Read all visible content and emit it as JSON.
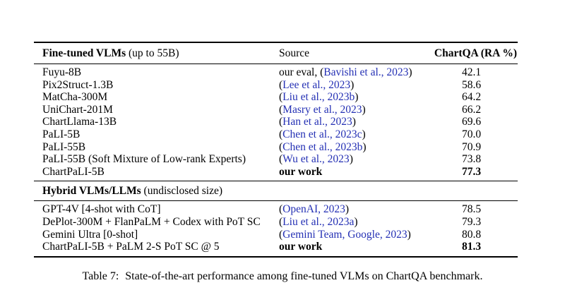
{
  "colors": {
    "background": "#ffffff",
    "text": "#000000",
    "citation_blue": "#2430b4",
    "rule": "#000000"
  },
  "punctuation": {
    "open_paren": "(",
    "close_paren": ")"
  },
  "table": {
    "sections": [
      {
        "name": "fine-tuned-vlms",
        "header": {
          "col1_bold": "Fine-tuned VLMs",
          "col1_normal": " (up to 55B)",
          "col2": "Source",
          "col3": "ChartQA (RA %)"
        },
        "rows": [
          {
            "model": "Fuyu-8B",
            "source_prefix": "our eval, ",
            "cite": "Bavishi et al., 2023",
            "score": "42.1",
            "ours": false
          },
          {
            "model": "Pix2Struct-1.3B",
            "source_prefix": "",
            "cite": "Lee et al., 2023",
            "score": "58.6",
            "ours": false
          },
          {
            "model": "MatCha-300M",
            "source_prefix": "",
            "cite": "Liu et al., 2023b",
            "score": "64.2",
            "ours": false
          },
          {
            "model": "UniChart-201M",
            "source_prefix": "",
            "cite": "Masry et al., 2023",
            "score": "66.2",
            "ours": false
          },
          {
            "model": "ChartLlama-13B",
            "source_prefix": "",
            "cite": "Han et al., 2023",
            "score": "69.6",
            "ours": false
          },
          {
            "model": "PaLI-5B",
            "source_prefix": "",
            "cite": "Chen et al., 2023c",
            "score": "70.0",
            "ours": false
          },
          {
            "model": "PaLI-55B",
            "source_prefix": "",
            "cite": "Chen et al., 2023b",
            "score": "70.9",
            "ours": false
          },
          {
            "model": "PaLI-55B (Soft Mixture of Low-rank Experts)",
            "source_prefix": "",
            "cite": "Wu et al., 2023",
            "score": "73.8",
            "ours": false
          },
          {
            "model": "ChartPaLI-5B",
            "source_text": "our work",
            "score": "77.3",
            "ours": true
          }
        ]
      },
      {
        "name": "hybrid-vlms-llms",
        "header": {
          "col1_bold": "Hybrid VLMs/LLMs",
          "col1_normal": " (undisclosed size)",
          "col2": "",
          "col3": ""
        },
        "rows": [
          {
            "model": "GPT-4V [4-shot with CoT]",
            "source_prefix": "",
            "cite": "OpenAI, 2023",
            "score": "78.5",
            "ours": false
          },
          {
            "model": "DePlot-300M + FlanPaLM + Codex with PoT SC",
            "source_prefix": "",
            "cite": "Liu et al., 2023a",
            "score": "79.3",
            "ours": false
          },
          {
            "model": "Gemini Ultra [0-shot]",
            "source_prefix": "",
            "cite": "Gemini Team, Google, 2023",
            "score": "80.8",
            "ours": false
          },
          {
            "model": "ChartPaLI-5B + PaLM 2-S PoT SC @ 5",
            "source_text": "our work",
            "score": "81.3",
            "ours": true
          }
        ]
      }
    ]
  },
  "caption": {
    "label": "Table 7:",
    "text": "State-of-the-art performance among fine-tuned VLMs on ChartQA benchmark."
  }
}
